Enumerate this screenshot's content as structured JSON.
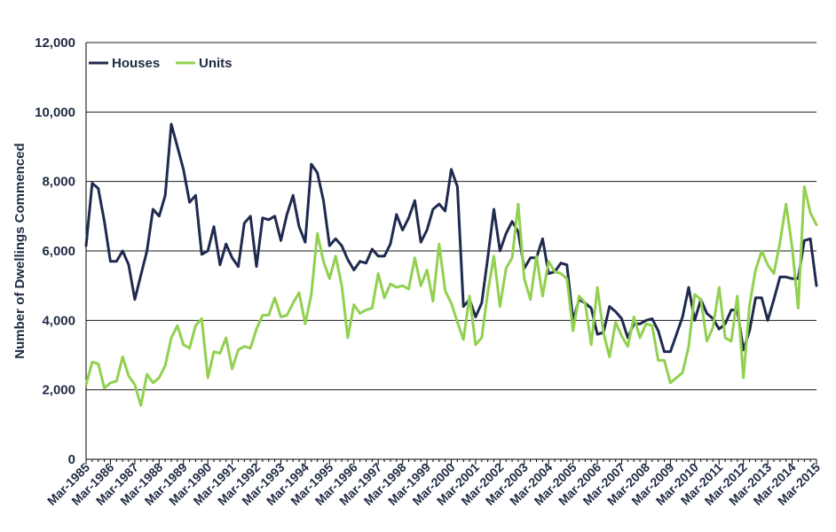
{
  "chart_data": {
    "type": "line",
    "title": "",
    "xlabel": "",
    "ylabel": "Number of Dwellings Commenced",
    "ylim": [
      0,
      12000
    ],
    "yticks": [
      "0",
      "2,000",
      "4,000",
      "6,000",
      "8,000",
      "10,000",
      "12,000"
    ],
    "grid": "horizontal",
    "legend_position": "top-left",
    "x_tick_labels": [
      "Mar-1985",
      "Mar-1986",
      "Mar-1987",
      "Mar-1988",
      "Mar-1989",
      "Mar-1990",
      "Mar-1991",
      "Mar-1992",
      "Mar-1993",
      "Mar-1994",
      "Mar-1995",
      "Mar-1996",
      "Mar-1997",
      "Mar-1998",
      "Mar-1999",
      "Mar-2000",
      "Mar-2001",
      "Mar-2002",
      "Mar-2003",
      "Mar-2004",
      "Mar-2005",
      "Mar-2006",
      "Mar-2007",
      "Mar-2008",
      "Mar-2009",
      "Mar-2010",
      "Mar-2011",
      "Mar-2012",
      "Mar-2013",
      "Mar-2014",
      "Mar-2015"
    ],
    "x_start": "Mar-1985",
    "x_frequency": "quarterly",
    "series": [
      {
        "name": "Houses",
        "color": "#1f2a4f",
        "values": [
          6150,
          7950,
          7800,
          6850,
          5700,
          5700,
          6000,
          5600,
          4600,
          5300,
          6000,
          7200,
          7000,
          7600,
          9650,
          9000,
          8350,
          7400,
          7600,
          5900,
          6000,
          6700,
          5600,
          6200,
          5800,
          5550,
          6800,
          7000,
          5550,
          6950,
          6900,
          7000,
          6300,
          7050,
          7600,
          6700,
          6250,
          8500,
          8250,
          7450,
          6150,
          6350,
          6150,
          5750,
          5450,
          5700,
          5650,
          6050,
          5850,
          5850,
          6200,
          7050,
          6600,
          6950,
          7450,
          6250,
          6600,
          7200,
          7350,
          7150,
          8350,
          7850,
          4400,
          4600,
          4100,
          4500,
          5800,
          7200,
          6000,
          6500,
          6850,
          6550,
          5500,
          5800,
          5800,
          6350,
          5350,
          5400,
          5650,
          5600,
          4000,
          4600,
          4500,
          4350,
          3600,
          3650,
          4400,
          4250,
          4050,
          3500,
          3900,
          3900,
          4000,
          4050,
          3700,
          3100,
          3100,
          3600,
          4100,
          4950,
          4000,
          4600,
          4200,
          4050,
          3750,
          3900,
          4300,
          4300,
          3150,
          3700,
          4650,
          4650,
          4000,
          4600,
          5250,
          5250,
          5200,
          5200,
          6300,
          6350,
          5000
        ]
      },
      {
        "name": "Units",
        "color": "#92d050",
        "values": [
          2150,
          2800,
          2750,
          2050,
          2200,
          2250,
          2950,
          2400,
          2150,
          1550,
          2450,
          2200,
          2350,
          2700,
          3500,
          3850,
          3300,
          3200,
          3850,
          4050,
          2350,
          3100,
          3050,
          3500,
          2600,
          3150,
          3250,
          3200,
          3750,
          4150,
          4150,
          4650,
          4100,
          4150,
          4500,
          4800,
          3900,
          4750,
          6500,
          5700,
          5200,
          5850,
          5000,
          3500,
          4450,
          4200,
          4300,
          4350,
          5350,
          4650,
          5050,
          4950,
          5000,
          4900,
          5800,
          5000,
          5450,
          4550,
          6200,
          4850,
          4500,
          3950,
          3450,
          4700,
          3300,
          3500,
          4800,
          5850,
          4400,
          5500,
          5800,
          7350,
          5200,
          4600,
          5850,
          4700,
          5700,
          5400,
          5350,
          5200,
          3700,
          4700,
          4500,
          3300,
          4950,
          3650,
          2950,
          3950,
          3550,
          3250,
          4100,
          3500,
          3900,
          3850,
          2850,
          2850,
          2200,
          2350,
          2500,
          3250,
          4750,
          4600,
          3400,
          3800,
          4950,
          3500,
          3400,
          4700,
          2350,
          4450,
          5450,
          6000,
          5600,
          5350,
          6250,
          7350,
          6100,
          4350,
          7850,
          7100,
          6750
        ]
      }
    ]
  }
}
